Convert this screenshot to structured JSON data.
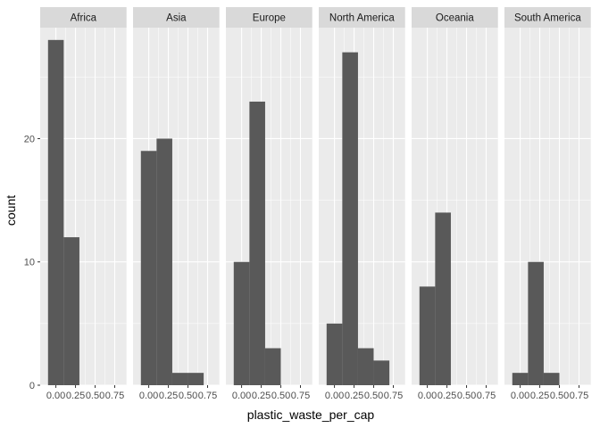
{
  "chart_data": {
    "type": "bar",
    "subtype": "faceted-histogram",
    "title": "",
    "xlabel": "plastic_waste_per_cap",
    "ylabel": "count",
    "facet_by": "continent",
    "bin_width": 0.2,
    "bin_centers": [
      0.0,
      0.2,
      0.4,
      0.6
    ],
    "xlim": [
      -0.2,
      0.9
    ],
    "ylim": [
      0,
      29
    ],
    "x_ticks": [
      0.0,
      0.25,
      0.5,
      0.75
    ],
    "x_tick_labels": [
      "0.00",
      "0.25",
      "0.50",
      "0.75"
    ],
    "y_ticks": [
      0,
      10,
      20
    ],
    "y_tick_labels": [
      "0",
      "10",
      "20"
    ],
    "grid": true,
    "legend": "none",
    "colors": {
      "bar": "#595959",
      "panel": "#ebebeb",
      "grid_major": "#ffffff",
      "strip": "#d9d9d9"
    },
    "facets": [
      {
        "name": "Africa",
        "values": [
          28,
          12,
          0,
          0
        ]
      },
      {
        "name": "Asia",
        "values": [
          19,
          20,
          1,
          1
        ]
      },
      {
        "name": "Europe",
        "values": [
          10,
          23,
          3,
          0
        ]
      },
      {
        "name": "North America",
        "values": [
          5,
          27,
          3,
          2
        ]
      },
      {
        "name": "Oceania",
        "values": [
          8,
          14,
          0,
          0
        ]
      },
      {
        "name": "South America",
        "values": [
          1,
          10,
          1,
          0
        ]
      }
    ]
  }
}
